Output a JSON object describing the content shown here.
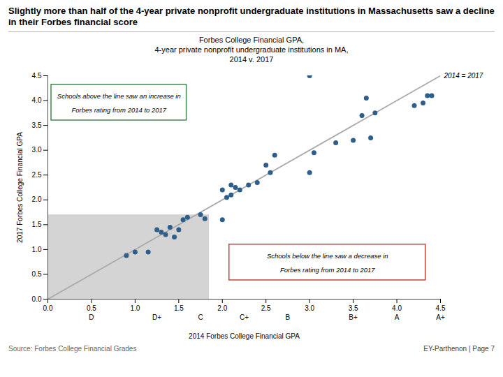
{
  "chart_data": {
    "type": "scatter",
    "title": "Slightly more than half of the 4-year private nonprofit undergraduate institutions in Massachusetts saw a decline in their Forbes financial score",
    "subtitle": [
      "Forbes College Financial GPA,",
      "4-year private nonprofit undergraduate institutions in MA,",
      "2014 v. 2017"
    ],
    "x_label": "2014 Forbes College Financial GPA",
    "y_label": "2017 Forbes College Financial GPA",
    "x": [
      0.9,
      1.0,
      1.15,
      1.25,
      1.3,
      1.35,
      1.4,
      1.45,
      1.5,
      1.55,
      1.6,
      1.75,
      1.8,
      2.0,
      2.0,
      2.05,
      2.1,
      2.1,
      2.15,
      2.2,
      2.3,
      2.4,
      2.5,
      2.55,
      2.6,
      3.0,
      3.05,
      3.0,
      3.3,
      3.5,
      3.6,
      3.65,
      3.7,
      3.75,
      4.2,
      4.3,
      4.35,
      4.4
    ],
    "y": [
      0.88,
      0.95,
      0.95,
      1.4,
      1.35,
      1.3,
      1.45,
      1.25,
      1.4,
      1.6,
      1.65,
      1.7,
      1.62,
      1.6,
      2.2,
      2.05,
      2.1,
      2.3,
      2.25,
      2.2,
      2.3,
      2.35,
      2.7,
      2.55,
      2.9,
      2.55,
      2.95,
      4.5,
      3.15,
      3.2,
      3.7,
      4.05,
      3.25,
      3.75,
      3.9,
      3.95,
      4.1,
      4.1
    ],
    "color": "#2e5f8a",
    "xlim": [
      0.0,
      4.5
    ],
    "ylim": [
      0.0,
      4.5
    ],
    "xticks": [
      {
        "value": 0,
        "label": "0.0"
      },
      0.5,
      {
        "value": 1,
        "label": "1.0"
      },
      1.5,
      {
        "value": 2,
        "label": "2.0"
      },
      2.5,
      {
        "value": 3,
        "label": "3.0"
      },
      3.5,
      {
        "value": 4,
        "label": "4.0"
      },
      4.5
    ],
    "yticks": [
      {
        "value": 0,
        "label": "0.0"
      },
      0.5,
      {
        "value": 1,
        "label": "1.0"
      },
      1.5,
      {
        "value": 2,
        "label": "2.0"
      },
      2.5,
      {
        "value": 3,
        "label": "3.0"
      },
      3.5,
      {
        "value": 4,
        "label": "4.0"
      },
      4.5
    ],
    "grid": false,
    "reference_line": {
      "x": [
        0,
        4.5
      ],
      "y": [
        0,
        4.5
      ],
      "color": "#aaaaaa",
      "label": "2014 = 2017"
    },
    "shaded_region": {
      "x": 0.0,
      "y": 0.0,
      "width": 1.85,
      "height": 1.7,
      "color": "#cccccc"
    },
    "annotations": [
      {
        "text": [
          "Schools above the line saw an increase in",
          "Forbes rating from 2014 to 2017"
        ],
        "x": 0.04,
        "y": 3.6,
        "width": 1.55,
        "height": 0.72,
        "color": "#3a7d44"
      },
      {
        "text": [
          "Schools below the line saw a decrease in",
          "Forbes rating from 2014 to 2017"
        ],
        "x": 2.08,
        "y": 0.38,
        "width": 2.25,
        "height": 0.72,
        "color": "#c0392b"
      }
    ],
    "grade_labels": {
      "labels": [
        "D",
        "D+",
        "C",
        "C+",
        "B",
        "B+",
        "A",
        "A+"
      ],
      "x": [
        0.5,
        1.25,
        1.75,
        2.25,
        2.75,
        3.5,
        4.0,
        4.5
      ]
    },
    "source": "Source: Forbes College Financial Grades",
    "footer": "EY-Parthenon | Page 7"
  }
}
